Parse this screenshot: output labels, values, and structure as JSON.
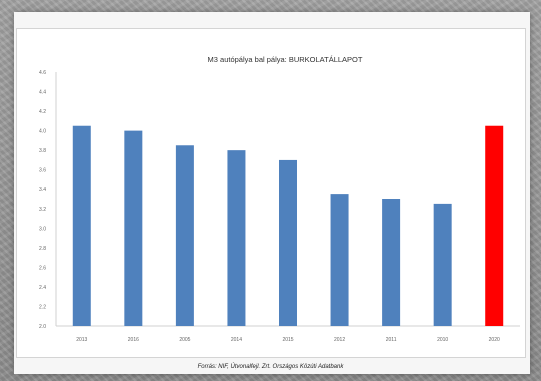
{
  "chart_data": {
    "type": "bar",
    "title": "M3 autópálya bal pálya: BURKOLATÁLLAPOT",
    "categories": [
      "2013",
      "2016",
      "2005",
      "2014",
      "2015",
      "2012",
      "2011",
      "2010",
      "2020"
    ],
    "values": [
      4.05,
      4.0,
      3.85,
      3.8,
      3.7,
      3.35,
      3.3,
      3.25,
      4.05
    ],
    "colors": [
      "#4f81bd",
      "#4f81bd",
      "#4f81bd",
      "#4f81bd",
      "#4f81bd",
      "#4f81bd",
      "#4f81bd",
      "#4f81bd",
      "#ff0000"
    ],
    "ylim": [
      2.0,
      4.6
    ],
    "yticks": [
      "2.0",
      "2.2",
      "2.4",
      "2.6",
      "2.8",
      "3.0",
      "3.2",
      "3.4",
      "3.6",
      "3.8",
      "4.0",
      "4.2",
      "4.4",
      "4.6"
    ],
    "grid": false,
    "legend": "none",
    "source": "Forrás: NIF, Útvonalfejl. Zrt. Országos Közúti Adatbank"
  }
}
